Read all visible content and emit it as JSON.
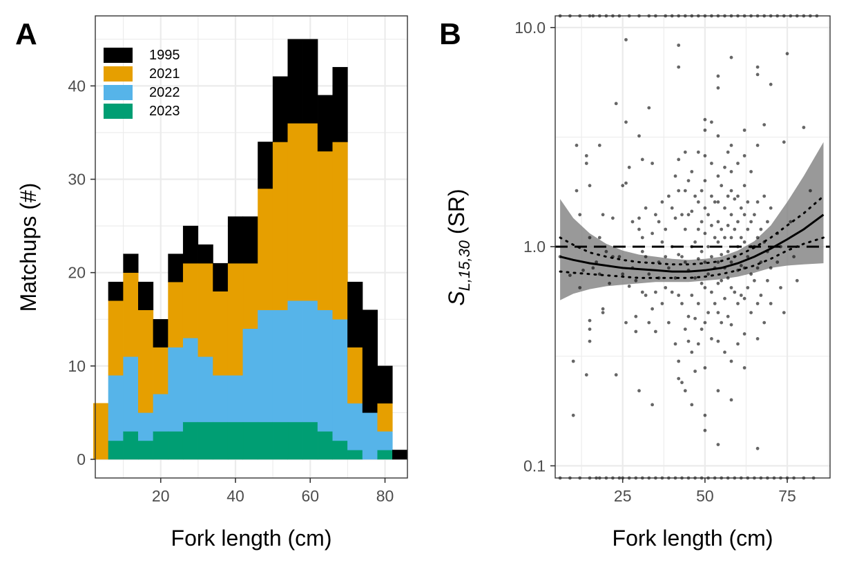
{
  "panelA": {
    "panel_label": "A",
    "colors": {
      "1995": "#000000",
      "2021": "#E69F00",
      "2022": "#56B4E9",
      "2023": "#009E73"
    }
  },
  "panelB": {
    "panel_label": "B",
    "ylabel_main": "S",
    "ylabel_sub": "L,15,30",
    "ylabel_tail": " (SR)"
  },
  "chart_data": [
    {
      "type": "bar",
      "stacked": true,
      "xlabel": "Fork length (cm)",
      "ylabel": "Matchups (#)",
      "xlim": [
        2.5,
        86
      ],
      "ylim": [
        -2,
        47.5
      ],
      "x_ticks": [
        20,
        40,
        60,
        80
      ],
      "y_ticks": [
        0,
        10,
        20,
        30,
        40
      ],
      "bin_width": 4,
      "bin_centers": [
        4,
        8,
        12,
        16,
        20,
        24,
        28,
        32,
        36,
        40,
        44,
        48,
        52,
        56,
        60,
        64,
        68,
        72,
        76,
        80,
        84
      ],
      "legend_position": "top-left",
      "series": [
        {
          "name": "2023",
          "values": [
            0,
            2,
            3,
            2,
            3,
            3,
            4,
            4,
            4,
            4,
            4,
            4,
            4,
            4,
            4,
            3,
            2,
            1,
            0,
            1,
            0
          ]
        },
        {
          "name": "2022",
          "values": [
            0,
            7,
            8,
            3,
            4,
            9,
            9,
            7,
            5,
            5,
            10,
            12,
            12,
            13,
            13,
            13,
            13,
            5,
            5,
            2,
            0
          ]
        },
        {
          "name": "2021",
          "values": [
            6,
            8,
            9,
            11,
            5,
            7,
            8,
            10,
            9,
            12,
            7,
            13,
            18,
            19,
            19,
            17,
            19,
            6,
            0,
            3,
            0
          ]
        },
        {
          "name": "1995",
          "values": [
            0,
            2,
            2,
            3,
            3,
            3,
            4,
            2,
            3,
            5,
            5,
            5,
            7,
            9,
            9,
            6,
            8,
            7,
            11,
            4,
            1
          ]
        }
      ]
    },
    {
      "type": "scatter",
      "xlabel": "Fork length (cm)",
      "y_scale": "log10",
      "xlim": [
        4.5,
        88
      ],
      "ylim": [
        0.088,
        11.3
      ],
      "x_ticks": [
        25,
        50,
        75
      ],
      "y_ticks": [
        0.1,
        1.0,
        10.0
      ],
      "y_tick_labels": [
        "0.1",
        "1.0",
        "10.0"
      ],
      "reference_line": {
        "y": 1.0,
        "style": "dashed"
      },
      "smooth_fit": {
        "x": [
          6,
          10,
          15,
          20,
          25,
          30,
          35,
          40,
          45,
          50,
          55,
          60,
          65,
          70,
          75,
          80,
          86
        ],
        "y": [
          0.9,
          0.87,
          0.84,
          0.82,
          0.8,
          0.79,
          0.78,
          0.77,
          0.77,
          0.78,
          0.8,
          0.84,
          0.9,
          0.98,
          1.08,
          1.2,
          1.4
        ],
        "ci_lower": [
          0.57,
          0.61,
          0.64,
          0.66,
          0.67,
          0.68,
          0.69,
          0.69,
          0.69,
          0.7,
          0.71,
          0.73,
          0.76,
          0.8,
          0.82,
          0.83,
          0.84
        ],
        "ci_upper": [
          1.65,
          1.35,
          1.15,
          1.03,
          0.96,
          0.92,
          0.9,
          0.88,
          0.87,
          0.88,
          0.9,
          0.96,
          1.06,
          1.25,
          1.6,
          2.1,
          3.0
        ],
        "dotted_lower": [
          0.77,
          0.76,
          0.75,
          0.74,
          0.73,
          0.72,
          0.72,
          0.72,
          0.72,
          0.73,
          0.75,
          0.78,
          0.82,
          0.88,
          0.96,
          1.03,
          1.1
        ],
        "dotted_upper": [
          1.1,
          1.02,
          0.94,
          0.9,
          0.87,
          0.85,
          0.84,
          0.83,
          0.83,
          0.84,
          0.86,
          0.91,
          0.99,
          1.1,
          1.25,
          1.42,
          1.7
        ]
      },
      "points": [
        [
          6,
          0.9
        ],
        [
          9,
          0.74
        ],
        [
          10,
          0.3
        ],
        [
          10,
          0.17
        ],
        [
          11,
          2.9
        ],
        [
          11,
          1.8
        ],
        [
          12,
          1.4
        ],
        [
          12,
          0.65
        ],
        [
          13,
          0.78
        ],
        [
          14,
          2.6
        ],
        [
          14,
          2.4
        ],
        [
          14,
          0.26
        ],
        [
          15,
          1.9
        ],
        [
          15,
          1.1
        ],
        [
          15,
          0.46
        ],
        [
          15,
          0.42
        ],
        [
          15,
          0.37
        ],
        [
          16,
          0.8
        ],
        [
          17,
          0.85
        ],
        [
          18,
          2.9
        ],
        [
          18,
          1.1
        ],
        [
          18,
          0.75
        ],
        [
          19,
          1.4
        ],
        [
          19,
          0.52
        ],
        [
          19,
          0.5
        ],
        [
          20,
          0.95
        ],
        [
          21,
          0.68
        ],
        [
          22,
          1.35
        ],
        [
          22,
          0.9
        ],
        [
          23,
          4.5
        ],
        [
          23,
          0.26
        ],
        [
          24,
          0.9
        ],
        [
          25,
          1.9
        ],
        [
          25,
          0.75
        ],
        [
          26,
          8.8
        ],
        [
          26,
          3.7
        ],
        [
          26,
          1.95
        ],
        [
          26,
          0.45
        ],
        [
          27,
          2.3
        ],
        [
          27,
          0.66
        ],
        [
          28,
          1.3
        ],
        [
          28,
          0.8
        ],
        [
          29,
          0.7
        ],
        [
          29,
          0.48
        ],
        [
          29,
          0.41
        ],
        [
          30,
          3.2
        ],
        [
          30,
          1.35
        ],
        [
          30,
          1.2
        ],
        [
          30,
          0.22
        ],
        [
          31,
          2.5
        ],
        [
          31,
          1.1
        ],
        [
          31,
          0.95
        ],
        [
          31,
          0.62
        ],
        [
          32,
          1.5
        ],
        [
          32,
          0.9
        ],
        [
          32,
          0.6
        ],
        [
          33,
          4.3
        ],
        [
          33,
          0.75
        ],
        [
          33,
          0.45
        ],
        [
          34,
          2.4
        ],
        [
          34,
          1.15
        ],
        [
          34,
          0.52
        ],
        [
          34,
          0.19
        ],
        [
          35,
          1.4
        ],
        [
          35,
          0.62
        ],
        [
          35,
          0.41
        ],
        [
          36,
          1.3
        ],
        [
          36,
          0.85
        ],
        [
          36,
          0.72
        ],
        [
          37,
          1.6
        ],
        [
          37,
          1.05
        ],
        [
          37,
          0.55
        ],
        [
          38,
          1.2
        ],
        [
          38,
          0.9
        ],
        [
          38,
          0.65
        ],
        [
          39,
          1.7
        ],
        [
          39,
          0.8
        ],
        [
          39,
          0.45
        ],
        [
          40,
          1.5
        ],
        [
          40,
          1.0
        ],
        [
          40,
          0.62
        ],
        [
          41,
          2.1
        ],
        [
          41,
          1.35
        ],
        [
          41,
          0.72
        ],
        [
          41,
          0.36
        ],
        [
          42,
          8.3
        ],
        [
          42,
          6.6
        ],
        [
          42,
          2.5
        ],
        [
          42,
          1.8
        ],
        [
          42,
          0.92
        ],
        [
          42,
          0.6
        ],
        [
          42,
          0.3
        ],
        [
          42,
          0.25
        ],
        [
          43,
          1.4
        ],
        [
          43,
          0.9
        ],
        [
          43,
          0.55
        ],
        [
          43,
          0.24
        ],
        [
          44,
          2.7
        ],
        [
          44,
          1.8
        ],
        [
          44,
          1.2
        ],
        [
          44,
          0.85
        ],
        [
          44,
          0.42
        ],
        [
          44,
          0.22
        ],
        [
          45,
          2.0
        ],
        [
          45,
          1.4
        ],
        [
          45,
          0.78
        ],
        [
          45,
          0.48
        ],
        [
          45,
          0.37
        ],
        [
          46,
          2.2
        ],
        [
          46,
          1.45
        ],
        [
          46,
          1.0
        ],
        [
          46,
          0.6
        ],
        [
          46,
          0.33
        ],
        [
          46,
          0.19
        ],
        [
          47,
          1.7
        ],
        [
          47,
          1.05
        ],
        [
          47,
          0.72
        ],
        [
          47,
          0.47
        ],
        [
          47,
          0.27
        ],
        [
          48,
          2.7
        ],
        [
          48,
          1.6
        ],
        [
          48,
          1.2
        ],
        [
          48,
          0.88
        ],
        [
          48,
          0.55
        ],
        [
          48,
          0.36
        ],
        [
          49,
          1.8
        ],
        [
          49,
          1.3
        ],
        [
          49,
          0.95
        ],
        [
          49,
          0.68
        ],
        [
          49,
          0.42
        ],
        [
          50,
          3.8
        ],
        [
          50,
          3.4
        ],
        [
          50,
          2.6
        ],
        [
          50,
          2.0
        ],
        [
          50,
          1.5
        ],
        [
          50,
          1.15
        ],
        [
          50,
          0.85
        ],
        [
          50,
          0.65
        ],
        [
          50,
          0.45
        ],
        [
          50,
          0.28
        ],
        [
          50,
          0.17
        ],
        [
          50,
          0.145
        ],
        [
          51,
          1.4
        ],
        [
          51,
          1.0
        ],
        [
          51,
          0.75
        ],
        [
          51,
          0.5
        ],
        [
          52,
          3.7
        ],
        [
          52,
          2.4
        ],
        [
          52,
          1.7
        ],
        [
          52,
          1.25
        ],
        [
          52,
          0.9
        ],
        [
          52,
          0.62
        ],
        [
          52,
          0.38
        ],
        [
          53,
          1.6
        ],
        [
          53,
          1.1
        ],
        [
          53,
          0.8
        ],
        [
          53,
          0.55
        ],
        [
          54,
          6.0
        ],
        [
          54,
          5.3
        ],
        [
          54,
          3.2
        ],
        [
          54,
          2.1
        ],
        [
          54,
          1.6
        ],
        [
          54,
          1.3
        ],
        [
          54,
          1.05
        ],
        [
          54,
          0.85
        ],
        [
          54,
          0.68
        ],
        [
          54,
          0.5
        ],
        [
          54,
          0.37
        ],
        [
          54,
          0.22
        ],
        [
          54,
          0.125
        ],
        [
          55,
          1.9
        ],
        [
          55,
          1.2
        ],
        [
          55,
          0.92
        ],
        [
          55,
          0.7
        ],
        [
          55,
          0.45
        ],
        [
          56,
          2.3
        ],
        [
          56,
          1.5
        ],
        [
          56,
          1.1
        ],
        [
          56,
          0.8
        ],
        [
          56,
          0.58
        ],
        [
          56,
          0.33
        ],
        [
          57,
          2.7
        ],
        [
          57,
          1.7
        ],
        [
          57,
          1.25
        ],
        [
          57,
          0.95
        ],
        [
          57,
          0.72
        ],
        [
          57,
          0.48
        ],
        [
          58,
          7.3
        ],
        [
          58,
          2.9
        ],
        [
          58,
          2.2
        ],
        [
          58,
          1.8
        ],
        [
          58,
          1.4
        ],
        [
          58,
          1.1
        ],
        [
          58,
          0.85
        ],
        [
          58,
          0.65
        ],
        [
          58,
          0.44
        ],
        [
          58,
          0.3
        ],
        [
          58,
          0.2
        ],
        [
          59,
          1.65
        ],
        [
          59,
          1.2
        ],
        [
          59,
          0.9
        ],
        [
          59,
          0.62
        ],
        [
          60,
          2.4
        ],
        [
          60,
          1.7
        ],
        [
          60,
          1.3
        ],
        [
          60,
          1.0
        ],
        [
          60,
          0.78
        ],
        [
          60,
          0.55
        ],
        [
          60,
          0.36
        ],
        [
          61,
          1.5
        ],
        [
          61,
          1.1
        ],
        [
          61,
          0.82
        ],
        [
          61,
          0.6
        ],
        [
          62,
          3.4
        ],
        [
          62,
          2.6
        ],
        [
          62,
          1.9
        ],
        [
          62,
          1.4
        ],
        [
          62,
          1.05
        ],
        [
          62,
          0.8
        ],
        [
          62,
          0.58
        ],
        [
          62,
          0.4
        ],
        [
          62,
          0.28
        ],
        [
          63,
          1.6
        ],
        [
          63,
          1.2
        ],
        [
          63,
          0.9
        ],
        [
          63,
          0.65
        ],
        [
          64,
          2.2
        ],
        [
          64,
          1.3
        ],
        [
          64,
          1.0
        ],
        [
          64,
          0.75
        ],
        [
          64,
          0.5
        ],
        [
          65,
          1.4
        ],
        [
          65,
          1.0
        ],
        [
          65,
          0.7
        ],
        [
          66,
          6.6
        ],
        [
          66,
          6.1
        ],
        [
          66,
          2.9
        ],
        [
          66,
          1.6
        ],
        [
          66,
          1.1
        ],
        [
          66,
          0.8
        ],
        [
          66,
          0.55
        ],
        [
          66,
          0.38
        ],
        [
          66,
          0.12
        ],
        [
          67,
          1.2
        ],
        [
          67,
          0.85
        ],
        [
          67,
          0.6
        ],
        [
          68,
          3.6
        ],
        [
          68,
          1.7
        ],
        [
          68,
          1.05
        ],
        [
          68,
          0.45
        ],
        [
          69,
          1.3
        ],
        [
          69,
          0.95
        ],
        [
          69,
          0.7
        ],
        [
          70,
          5.5
        ],
        [
          70,
          1.5
        ],
        [
          70,
          0.8
        ],
        [
          70,
          0.55
        ],
        [
          72,
          1.15
        ],
        [
          72,
          0.85
        ],
        [
          73,
          1.0
        ],
        [
          73,
          0.65
        ],
        [
          74,
          3.0
        ],
        [
          74,
          0.5
        ],
        [
          75,
          7.6
        ],
        [
          76,
          1.3
        ],
        [
          77,
          0.9
        ],
        [
          78,
          0.7
        ],
        [
          80,
          3.5
        ],
        [
          82,
          1.8
        ]
      ],
      "points_at_upper_bound_x": [
        6,
        9,
        12,
        15,
        16,
        18,
        20,
        22,
        24,
        27,
        30,
        33,
        35,
        38,
        40,
        42,
        44,
        46,
        48,
        50,
        52,
        54,
        56,
        58,
        60,
        62,
        64,
        66,
        68,
        70,
        72,
        74,
        76,
        78,
        80,
        82,
        84
      ],
      "points_at_lower_bound_x": [
        6,
        9,
        12,
        15,
        17,
        18,
        20,
        22,
        24,
        25,
        27,
        29,
        31,
        33,
        35,
        37,
        39,
        41,
        43,
        45,
        47,
        49,
        51,
        53,
        55,
        57,
        59,
        61,
        63,
        65,
        67,
        69,
        71,
        73,
        75,
        77,
        80,
        83
      ]
    }
  ]
}
